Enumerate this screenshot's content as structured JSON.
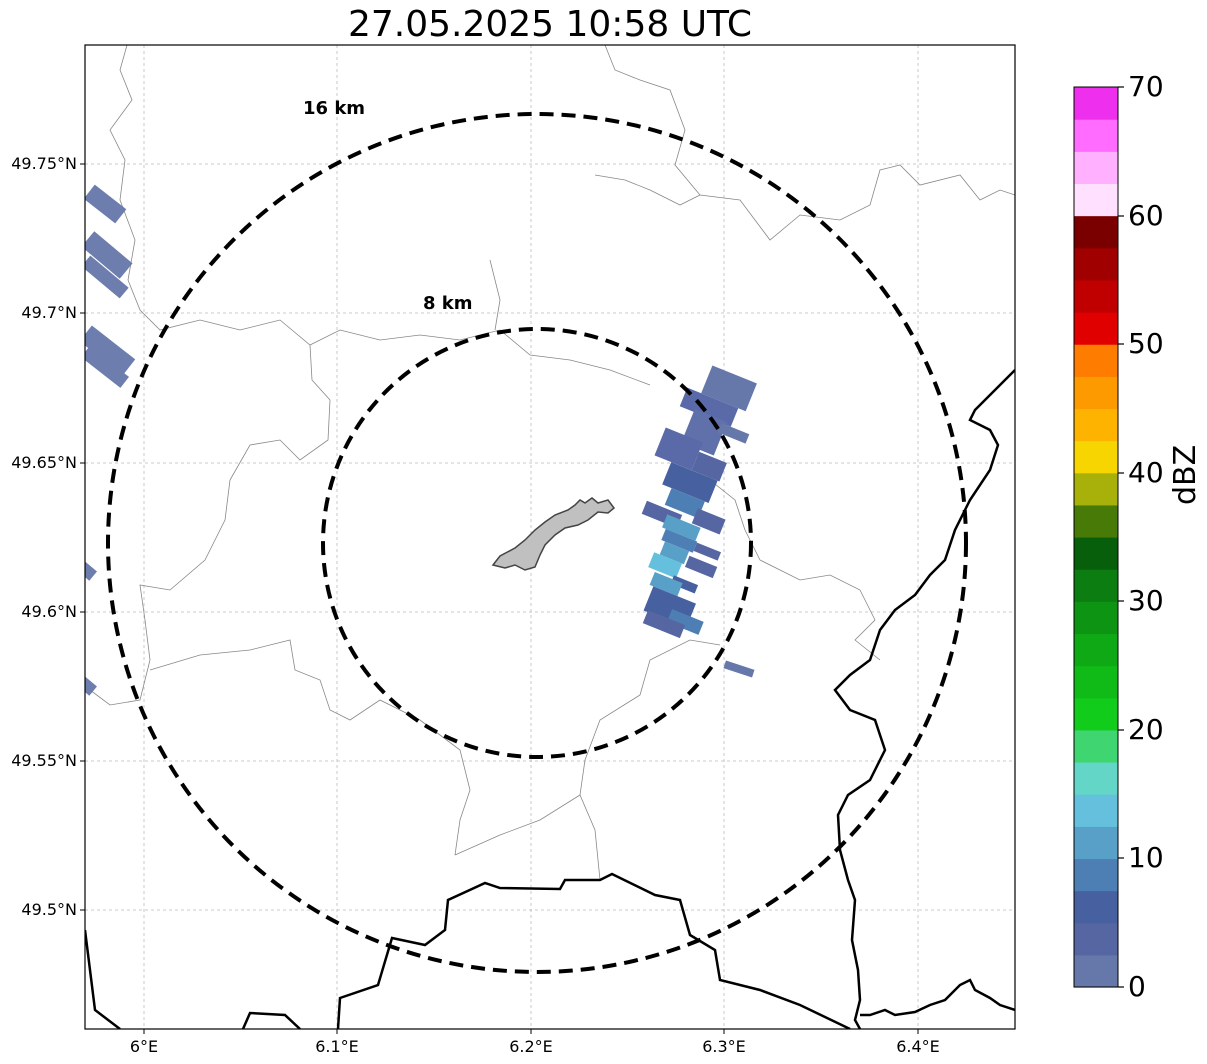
{
  "title": "27.05.2025 10:58 UTC",
  "lat_labels": [
    "49.75°N",
    "49.7°N",
    "49.65°N",
    "49.6°N",
    "49.55°N",
    "49.5°N"
  ],
  "lon_labels": [
    "6°E",
    "6.1°E",
    "6.2°E",
    "6.3°E",
    "6.4°E"
  ],
  "range_rings": [
    {
      "label": "16 km"
    },
    {
      "label": "8 km"
    }
  ],
  "colorbar": {
    "label": "dBZ",
    "ticks": [
      "0",
      "10",
      "20",
      "30",
      "40",
      "50",
      "60",
      "70"
    ],
    "colors": [
      "#6677aa",
      "#5566a2",
      "#4660a0",
      "#4d7fb5",
      "#58a0c8",
      "#64c0dc",
      "#63d6c8",
      "#3fd672",
      "#12cc1b",
      "#10bb18",
      "#0fa915",
      "#0e9413",
      "#0c7e11",
      "#075f0b",
      "#487a08",
      "#a8b00a",
      "#f7d500",
      "#fdb300",
      "#fd9a00",
      "#fe7c00",
      "#e00000",
      "#c00000",
      "#a00000",
      "#7a0000",
      "#ffe0ff",
      "#ffb0ff",
      "#ff6cff",
      "#ee30ee"
    ]
  }
}
